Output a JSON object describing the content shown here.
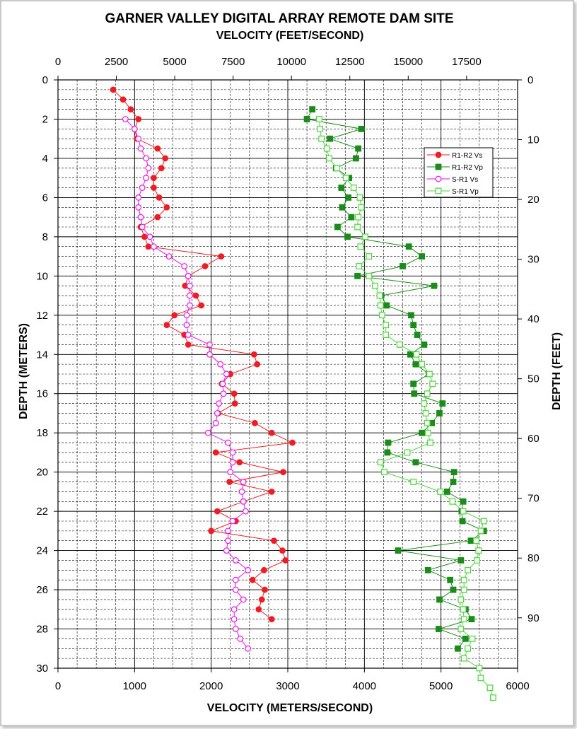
{
  "chart_data": {
    "type": "scatter",
    "title": "GARNER VALLEY DIGITAL ARRAY REMOTE DAM SITE",
    "x_bottom": {
      "label": "VELOCITY (METERS/SECOND)",
      "range": [
        0,
        6000
      ],
      "ticks": [
        0,
        1000,
        2000,
        3000,
        4000,
        5000,
        6000
      ],
      "minor_step": 250
    },
    "x_top": {
      "label": "VELOCITY (FEET/SECOND)",
      "range_note": "feet",
      "ticks": [
        0,
        2500,
        5000,
        7500,
        10000,
        12500,
        15000,
        17500
      ]
    },
    "y_left": {
      "label": "DEPTH (METERS)",
      "range": [
        0,
        30
      ],
      "inverted": true,
      "ticks": [
        0,
        2,
        4,
        6,
        8,
        10,
        12,
        14,
        16,
        18,
        20,
        22,
        24,
        26,
        28,
        30
      ],
      "minor_step": 0.5
    },
    "y_right": {
      "label": "DEPTH (FEET)",
      "ticks": [
        0,
        10,
        20,
        30,
        40,
        50,
        60,
        70,
        80,
        90
      ]
    },
    "grid": true,
    "legend_position": "top-right",
    "series": [
      {
        "name": "R1-R2 Vs",
        "color": "#ee1c24",
        "marker": "filled-circle",
        "points": [
          [
            720,
            0.5
          ],
          [
            850,
            1
          ],
          [
            950,
            1.5
          ],
          [
            1050,
            2
          ],
          [
            1000,
            2.5
          ],
          [
            1030,
            3
          ],
          [
            1300,
            3.5
          ],
          [
            1400,
            4
          ],
          [
            1350,
            4.5
          ],
          [
            1250,
            5
          ],
          [
            1250,
            5.5
          ],
          [
            1320,
            6
          ],
          [
            1420,
            6.5
          ],
          [
            1300,
            7
          ],
          [
            1080,
            7.5
          ],
          [
            1130,
            8
          ],
          [
            1180,
            8.5
          ],
          [
            2130,
            9
          ],
          [
            1920,
            9.5
          ],
          [
            1700,
            10
          ],
          [
            1660,
            10.5
          ],
          [
            1800,
            11
          ],
          [
            1870,
            11.5
          ],
          [
            1520,
            12
          ],
          [
            1420,
            12.5
          ],
          [
            1650,
            13
          ],
          [
            1700,
            13.5
          ],
          [
            2560,
            14
          ],
          [
            2600,
            14.5
          ],
          [
            2250,
            15
          ],
          [
            2140,
            15.5
          ],
          [
            2300,
            16
          ],
          [
            2310,
            16.5
          ],
          [
            2090,
            17
          ],
          [
            2570,
            17.5
          ],
          [
            2790,
            18
          ],
          [
            3060,
            18.5
          ],
          [
            2060,
            19
          ],
          [
            2370,
            19.5
          ],
          [
            2940,
            20
          ],
          [
            2240,
            20.5
          ],
          [
            2790,
            21
          ],
          [
            2420,
            21.5
          ],
          [
            2080,
            22
          ],
          [
            2320,
            22.5
          ],
          [
            2000,
            23
          ],
          [
            2820,
            23.5
          ],
          [
            2930,
            24
          ],
          [
            2970,
            24.5
          ],
          [
            2690,
            25
          ],
          [
            2540,
            25.5
          ],
          [
            2700,
            26
          ],
          [
            2660,
            26.5
          ],
          [
            2620,
            27
          ],
          [
            2790,
            27.5
          ]
        ]
      },
      {
        "name": "R1-R2 Vp",
        "color": "#1a8c1a",
        "marker": "filled-square",
        "points": [
          [
            3320,
            1.5
          ],
          [
            3250,
            2
          ],
          [
            3960,
            2.5
          ],
          [
            3550,
            3
          ],
          [
            3920,
            3.5
          ],
          [
            3890,
            4
          ],
          [
            3630,
            4.5
          ],
          [
            3800,
            5
          ],
          [
            3700,
            5.5
          ],
          [
            3790,
            6
          ],
          [
            3710,
            6.5
          ],
          [
            3830,
            7
          ],
          [
            3650,
            7.5
          ],
          [
            3780,
            8
          ],
          [
            4580,
            8.5
          ],
          [
            4750,
            9
          ],
          [
            4500,
            9.5
          ],
          [
            3910,
            10
          ],
          [
            4910,
            10.5
          ],
          [
            4220,
            11
          ],
          [
            4290,
            11.5
          ],
          [
            4610,
            12
          ],
          [
            4640,
            12.5
          ],
          [
            4690,
            13
          ],
          [
            4780,
            13.5
          ],
          [
            4600,
            14
          ],
          [
            4670,
            14.5
          ],
          [
            4840,
            15
          ],
          [
            4640,
            15.5
          ],
          [
            4650,
            16
          ],
          [
            5020,
            16.5
          ],
          [
            4980,
            17
          ],
          [
            4880,
            17.5
          ],
          [
            4750,
            18
          ],
          [
            4310,
            18.5
          ],
          [
            4300,
            19
          ],
          [
            4670,
            19.5
          ],
          [
            5170,
            20
          ],
          [
            5160,
            20.5
          ],
          [
            5080,
            21
          ],
          [
            5290,
            21.5
          ],
          [
            5270,
            22
          ],
          [
            5280,
            22.5
          ],
          [
            5560,
            23
          ],
          [
            5390,
            23.5
          ],
          [
            4440,
            24
          ],
          [
            5260,
            24.5
          ],
          [
            4830,
            25
          ],
          [
            5120,
            25.5
          ],
          [
            5160,
            26
          ],
          [
            4980,
            26.5
          ],
          [
            5320,
            27
          ],
          [
            5400,
            27.5
          ],
          [
            4970,
            28
          ],
          [
            5320,
            28.5
          ],
          [
            5220,
            29
          ]
        ]
      },
      {
        "name": "S-R1 Vs",
        "color": "#ee10ee",
        "marker": "open-circle",
        "points": [
          [
            880,
            2
          ],
          [
            1000,
            2.5
          ],
          [
            1050,
            3
          ],
          [
            1080,
            3.5
          ],
          [
            1150,
            4
          ],
          [
            1180,
            4.5
          ],
          [
            1150,
            5
          ],
          [
            1100,
            5.5
          ],
          [
            1050,
            6
          ],
          [
            1050,
            6.5
          ],
          [
            1080,
            7
          ],
          [
            1100,
            7.5
          ],
          [
            1200,
            8
          ],
          [
            1250,
            8.5
          ],
          [
            1450,
            9
          ],
          [
            1650,
            9.5
          ],
          [
            1700,
            10
          ],
          [
            1720,
            10.5
          ],
          [
            1720,
            11
          ],
          [
            1720,
            11.5
          ],
          [
            1680,
            12
          ],
          [
            1680,
            12.5
          ],
          [
            1700,
            13
          ],
          [
            1980,
            13.5
          ],
          [
            1980,
            14
          ],
          [
            2120,
            14.5
          ],
          [
            2200,
            15
          ],
          [
            2150,
            15.5
          ],
          [
            2160,
            16
          ],
          [
            2100,
            16.5
          ],
          [
            2080,
            17
          ],
          [
            2060,
            17.5
          ],
          [
            1960,
            18
          ],
          [
            2220,
            18.5
          ],
          [
            2280,
            19
          ],
          [
            2280,
            19.5
          ],
          [
            2250,
            20
          ],
          [
            2420,
            20.5
          ],
          [
            2400,
            21
          ],
          [
            2420,
            21.5
          ],
          [
            2450,
            22
          ],
          [
            2280,
            22.5
          ],
          [
            2220,
            23
          ],
          [
            2220,
            23.5
          ],
          [
            2200,
            24
          ],
          [
            2320,
            24.5
          ],
          [
            2480,
            25
          ],
          [
            2320,
            25.5
          ],
          [
            2320,
            26
          ],
          [
            2420,
            26.5
          ],
          [
            2300,
            27
          ],
          [
            2300,
            27.5
          ],
          [
            2320,
            28
          ],
          [
            2380,
            28.5
          ],
          [
            2480,
            29
          ]
        ]
      },
      {
        "name": "S-R1 Vp",
        "color": "#4cd63c",
        "marker": "open-square",
        "points": [
          [
            3410,
            2
          ],
          [
            3420,
            2.5
          ],
          [
            3440,
            3
          ],
          [
            3510,
            3.5
          ],
          [
            3540,
            4
          ],
          [
            3640,
            4.5
          ],
          [
            3760,
            5
          ],
          [
            3860,
            5.5
          ],
          [
            3940,
            6
          ],
          [
            3960,
            6.5
          ],
          [
            3920,
            7
          ],
          [
            3910,
            7.5
          ],
          [
            4010,
            8
          ],
          [
            3950,
            8.5
          ],
          [
            4060,
            9
          ],
          [
            3930,
            9.5
          ],
          [
            4060,
            10
          ],
          [
            4140,
            10.5
          ],
          [
            4200,
            11
          ],
          [
            4210,
            11.5
          ],
          [
            4230,
            12
          ],
          [
            4280,
            12.5
          ],
          [
            4280,
            13
          ],
          [
            4460,
            13.5
          ],
          [
            4680,
            14
          ],
          [
            4750,
            14.5
          ],
          [
            4850,
            15
          ],
          [
            4890,
            15.5
          ],
          [
            4820,
            16
          ],
          [
            4780,
            16.5
          ],
          [
            4800,
            17
          ],
          [
            4820,
            17.5
          ],
          [
            4830,
            18
          ],
          [
            4860,
            18.5
          ],
          [
            4560,
            19
          ],
          [
            4210,
            19.5
          ],
          [
            4260,
            20
          ],
          [
            4640,
            20.5
          ],
          [
            4990,
            21
          ],
          [
            5150,
            21.5
          ],
          [
            5290,
            22
          ],
          [
            5560,
            22.5
          ],
          [
            5520,
            23
          ],
          [
            5460,
            23.5
          ],
          [
            5490,
            24
          ],
          [
            5470,
            24.5
          ],
          [
            5350,
            25
          ],
          [
            5300,
            25.5
          ],
          [
            5300,
            26
          ],
          [
            5260,
            26.5
          ],
          [
            5290,
            27
          ],
          [
            5300,
            27.5
          ],
          [
            5260,
            28
          ],
          [
            5410,
            28.5
          ],
          [
            5350,
            29
          ],
          [
            5300,
            29.5
          ],
          [
            5500,
            30
          ],
          [
            5520,
            30.5
          ],
          [
            5640,
            31
          ],
          [
            5680,
            31.5
          ]
        ]
      }
    ]
  }
}
